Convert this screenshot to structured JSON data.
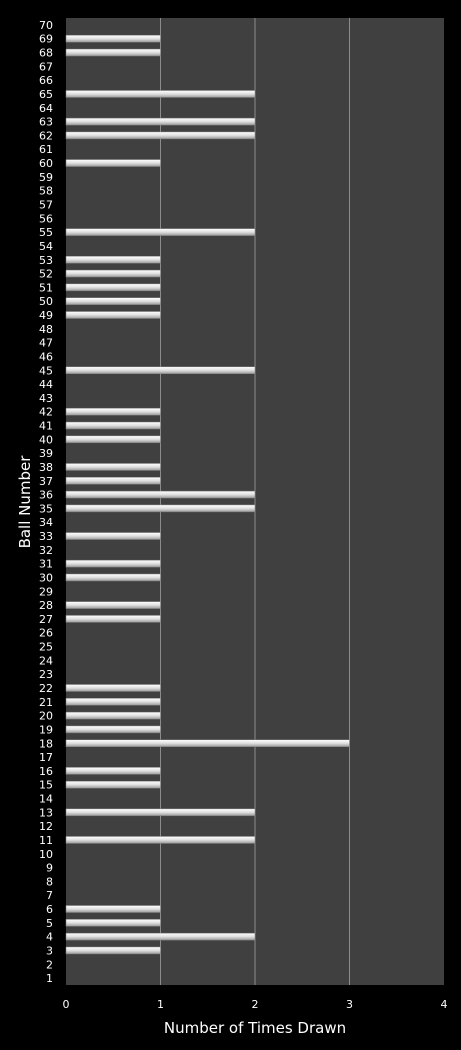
{
  "chart_data": {
    "type": "bar",
    "orientation": "horizontal",
    "title": "",
    "xlabel": "Number of Times Drawn",
    "ylabel": "Ball Number",
    "xlim": [
      0,
      4
    ],
    "x_ticks": [
      "0",
      "1",
      "2",
      "3",
      "4"
    ],
    "grid": "vertical",
    "legend": "none",
    "colors": {
      "background": "#000000",
      "plot_area": "#404040",
      "bar": "#e6e6e6",
      "gridline": "#8c8c8c",
      "text": "#ffffff"
    },
    "categories": [
      "1",
      "2",
      "3",
      "4",
      "5",
      "6",
      "7",
      "8",
      "9",
      "10",
      "11",
      "12",
      "13",
      "14",
      "15",
      "16",
      "17",
      "18",
      "19",
      "20",
      "21",
      "22",
      "23",
      "24",
      "25",
      "26",
      "27",
      "28",
      "29",
      "30",
      "31",
      "32",
      "33",
      "34",
      "35",
      "36",
      "37",
      "38",
      "39",
      "40",
      "41",
      "42",
      "43",
      "44",
      "45",
      "46",
      "47",
      "48",
      "49",
      "50",
      "51",
      "52",
      "53",
      "54",
      "55",
      "56",
      "57",
      "58",
      "59",
      "60",
      "61",
      "62",
      "63",
      "64",
      "65",
      "66",
      "67",
      "68",
      "69",
      "70"
    ],
    "values": [
      0,
      0,
      1,
      2,
      1,
      1,
      0,
      0,
      0,
      0,
      2,
      0,
      2,
      0,
      1,
      1,
      0,
      3,
      1,
      1,
      1,
      1,
      0,
      0,
      0,
      0,
      1,
      1,
      0,
      1,
      1,
      0,
      1,
      0,
      2,
      2,
      1,
      1,
      0,
      1,
      1,
      1,
      0,
      0,
      2,
      0,
      0,
      0,
      1,
      1,
      1,
      1,
      1,
      0,
      2,
      0,
      0,
      0,
      0,
      1,
      0,
      2,
      2,
      0,
      2,
      0,
      0,
      1,
      1,
      0
    ]
  }
}
